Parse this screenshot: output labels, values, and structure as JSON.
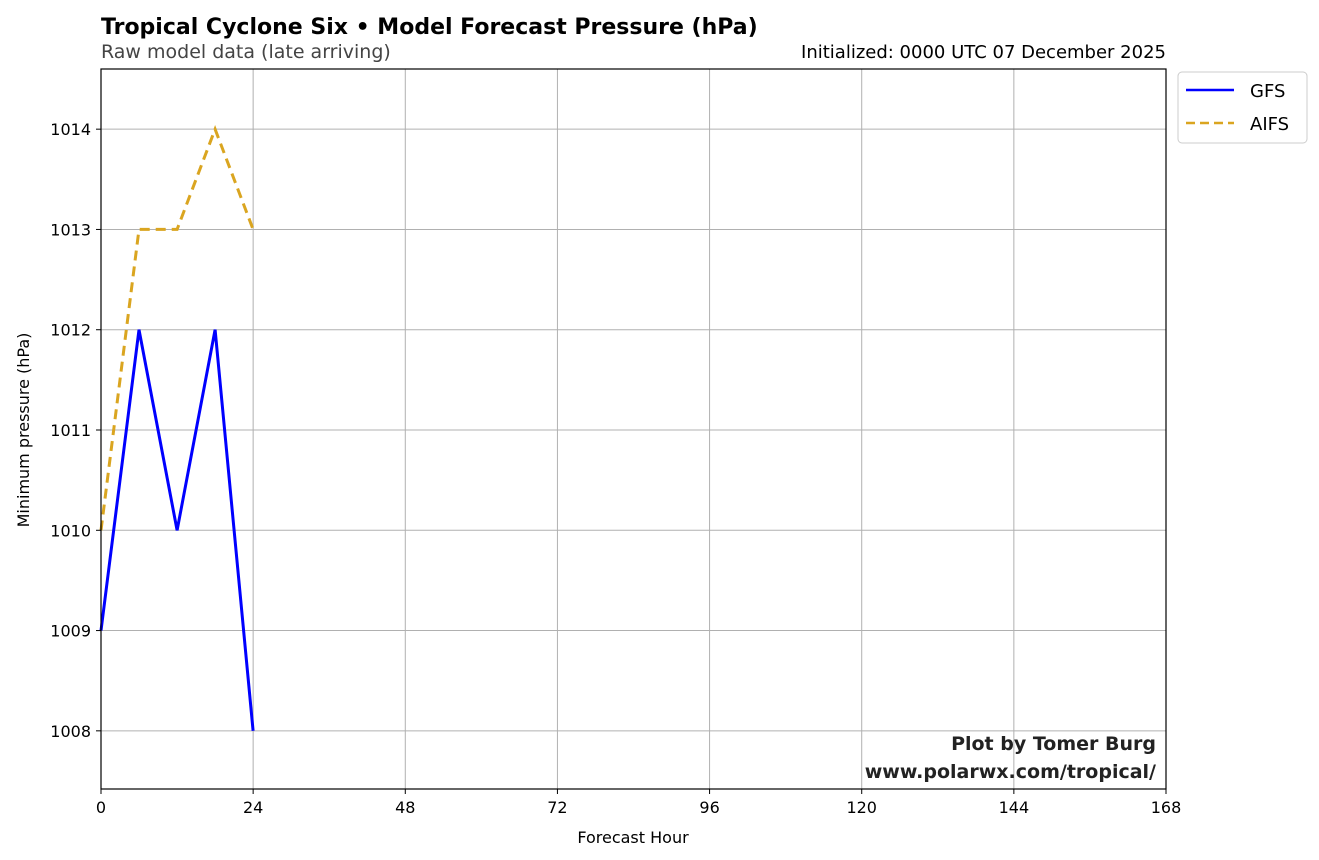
{
  "chart_data": {
    "type": "line",
    "title": "Tropical Cyclone Six • Model Forecast Pressure (hPa)",
    "subtitle": "Raw model data (late arriving)",
    "init_label": "Initialized: 0000 UTC 07 December 2025",
    "xlabel": "Forecast Hour",
    "ylabel": "Minimum pressure (hPa)",
    "xlim": [
      0,
      168
    ],
    "ylim": [
      1007.42,
      1014.6
    ],
    "xticks": [
      0,
      24,
      48,
      72,
      96,
      120,
      144,
      168
    ],
    "yticks": [
      1008,
      1009,
      1010,
      1011,
      1012,
      1013,
      1014
    ],
    "grid": true,
    "legend_position": "outside-top-right",
    "series": [
      {
        "name": "GFS",
        "color": "#0000ff",
        "style": "solid",
        "x": [
          0,
          6,
          12,
          18,
          24
        ],
        "y": [
          1009,
          1012,
          1010,
          1012,
          1008
        ]
      },
      {
        "name": "AIFS",
        "color": "#daa520",
        "style": "dashed",
        "x": [
          0,
          6,
          12,
          18,
          24
        ],
        "y": [
          1010,
          1013,
          1013,
          1014,
          1013
        ]
      }
    ],
    "credit_line1": "Plot by Tomer Burg",
    "credit_line2": "www.polarwx.com/tropical/"
  }
}
